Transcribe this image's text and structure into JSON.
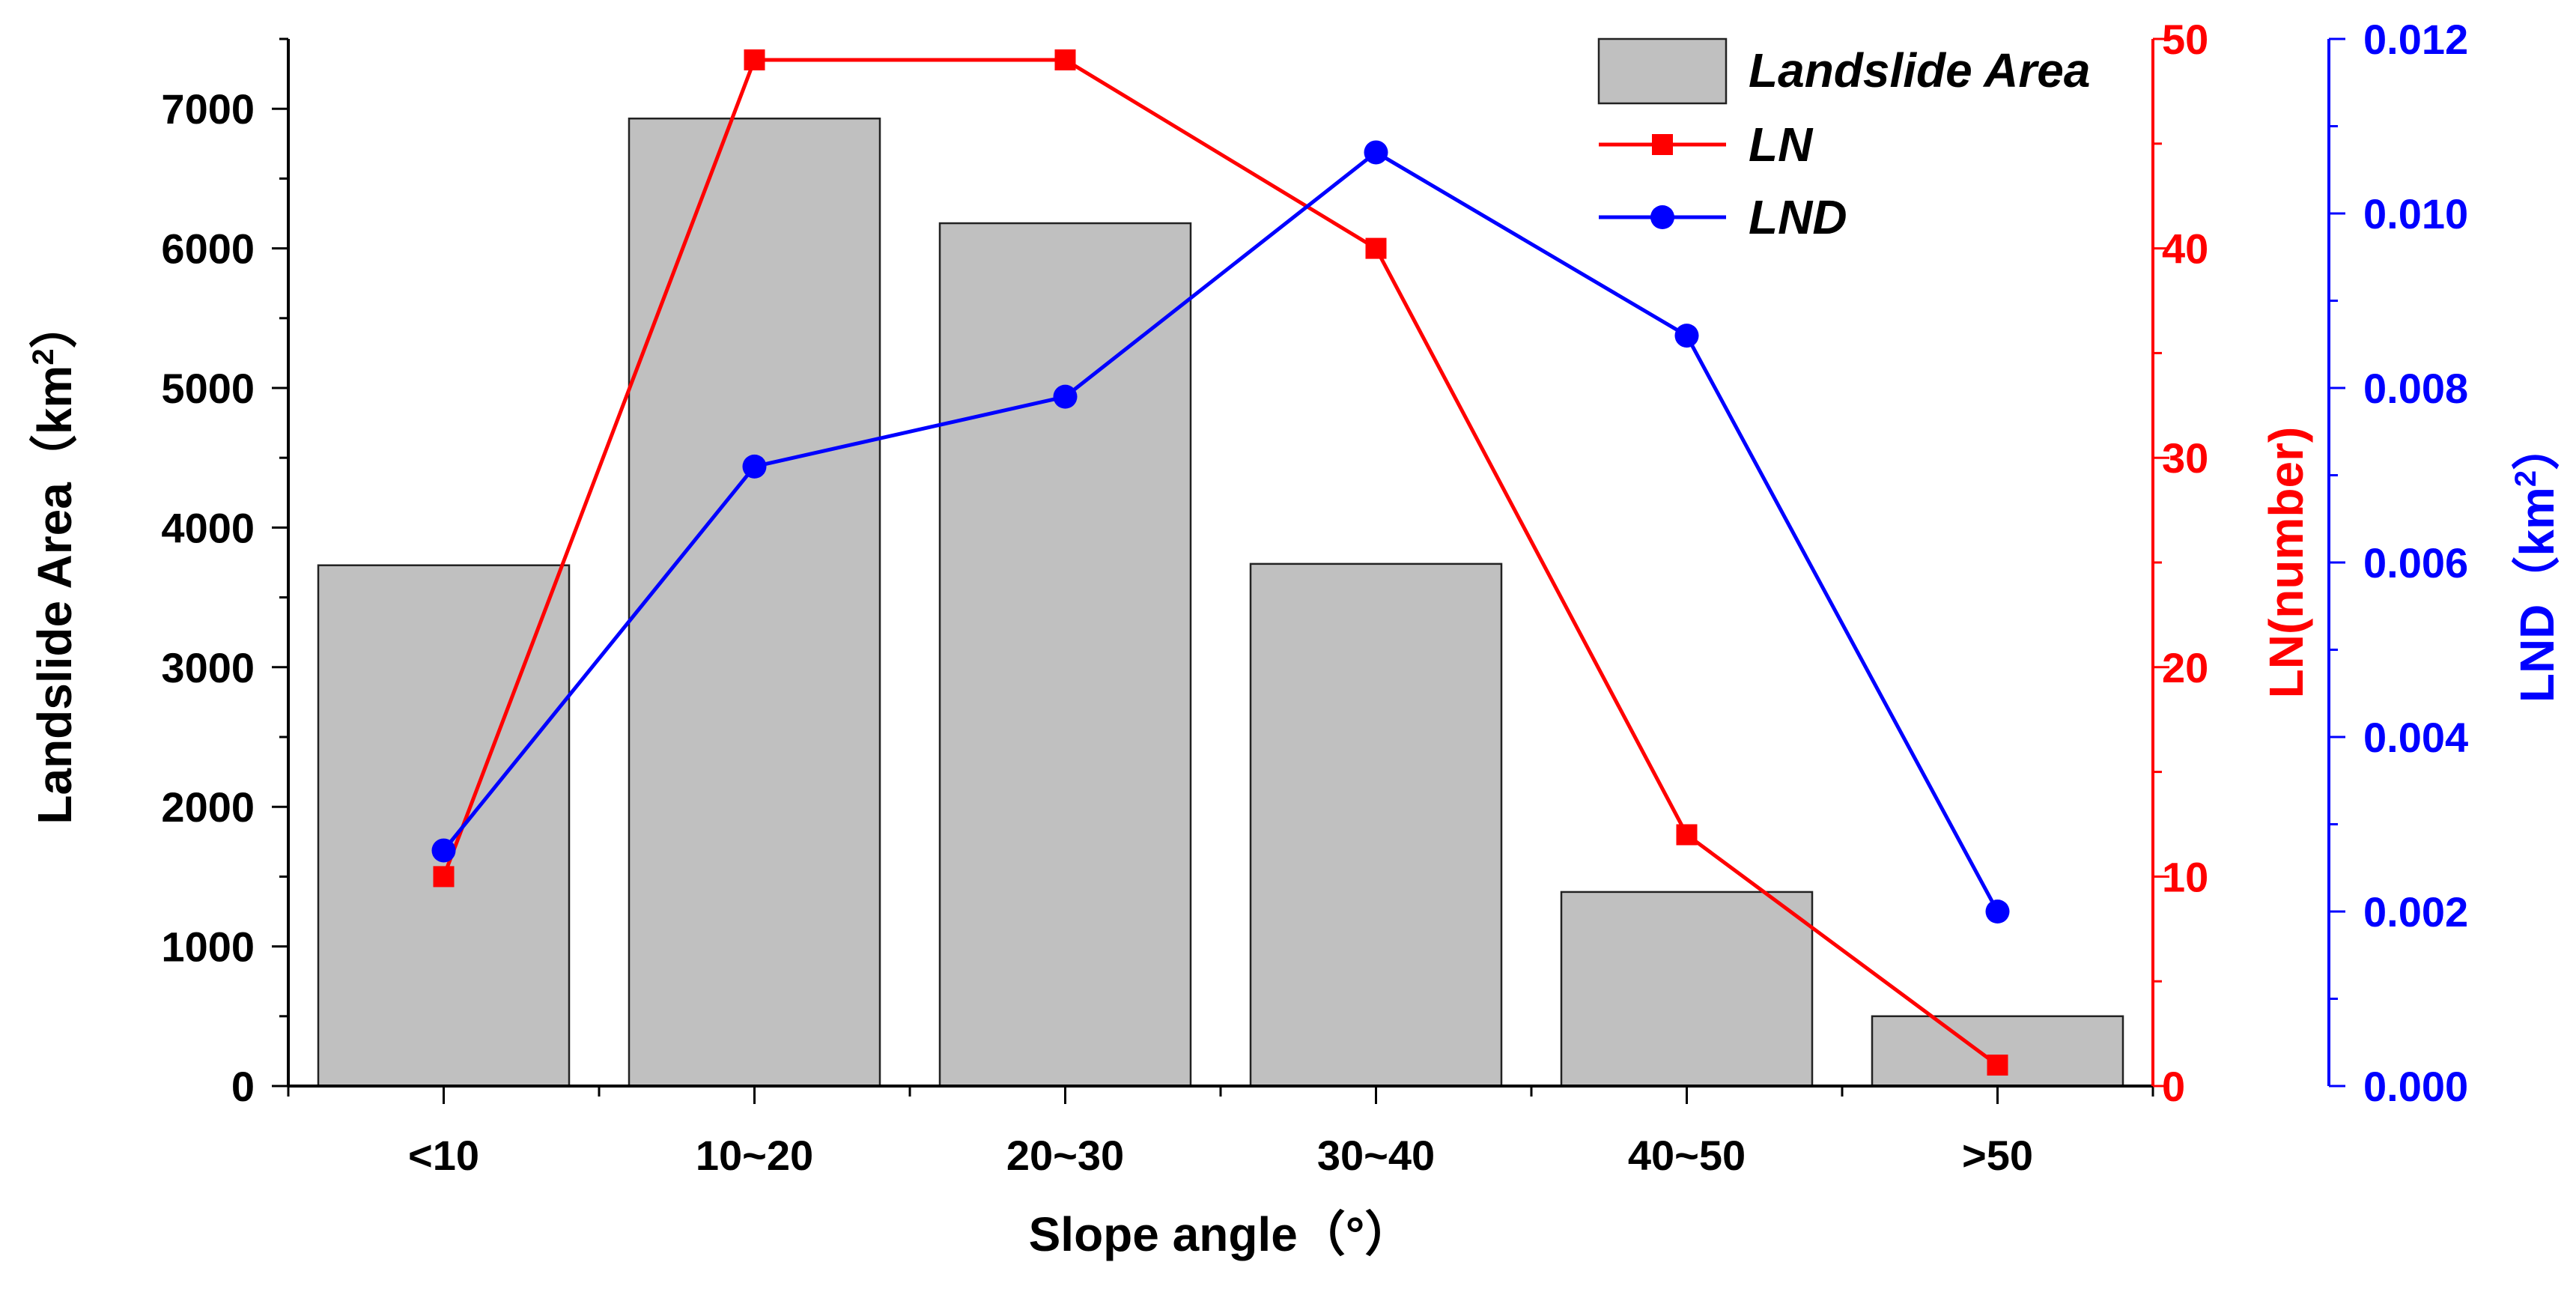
{
  "chart_data": {
    "type": "bar+line",
    "title": "",
    "xlabel": "Slope angle（°）",
    "categories": [
      "<10",
      "10~20",
      "20~30",
      "30~40",
      "40~50",
      ">50"
    ],
    "series": [
      {
        "name": "Landslide Area",
        "type": "bar",
        "axis": "left",
        "values": [
          3730,
          6930,
          6180,
          3740,
          1390,
          500
        ],
        "color": "#c0c0c0"
      },
      {
        "name": "LN",
        "type": "line",
        "marker": "square",
        "axis": "right1",
        "values": [
          10,
          49,
          49,
          40,
          12,
          1
        ],
        "color": "#ff0000"
      },
      {
        "name": "LND",
        "type": "line",
        "marker": "circle",
        "axis": "right2",
        "values": [
          0.0027,
          0.0071,
          0.0079,
          0.0107,
          0.0086,
          0.002
        ],
        "color": "#0000ff"
      }
    ],
    "axes": {
      "left": {
        "label": "Landslide Area（km",
        "label_sup": "2",
        "label_close": "）",
        "ylim": [
          0,
          7500
        ],
        "ticks": [
          "0",
          "1000",
          "2000",
          "3000",
          "4000",
          "5000",
          "6000",
          "7000"
        ],
        "color": "#000000"
      },
      "right1": {
        "label": "LN(number)",
        "ylim": [
          0,
          50
        ],
        "ticks": [
          "0",
          "10",
          "20",
          "30",
          "40",
          "50"
        ],
        "color": "#ff0000"
      },
      "right2": {
        "label": "LND（km",
        "label_sup": "2",
        "label_close": "）",
        "ylim": [
          0,
          0.012
        ],
        "ticks": [
          "0.000",
          "0.002",
          "0.004",
          "0.006",
          "0.008",
          "0.010",
          "0.012"
        ],
        "color": "#0000ff"
      }
    },
    "legend": {
      "position": "top-right",
      "entries": [
        "Landslide Area",
        "LN",
        "LND"
      ]
    },
    "grid": false
  }
}
